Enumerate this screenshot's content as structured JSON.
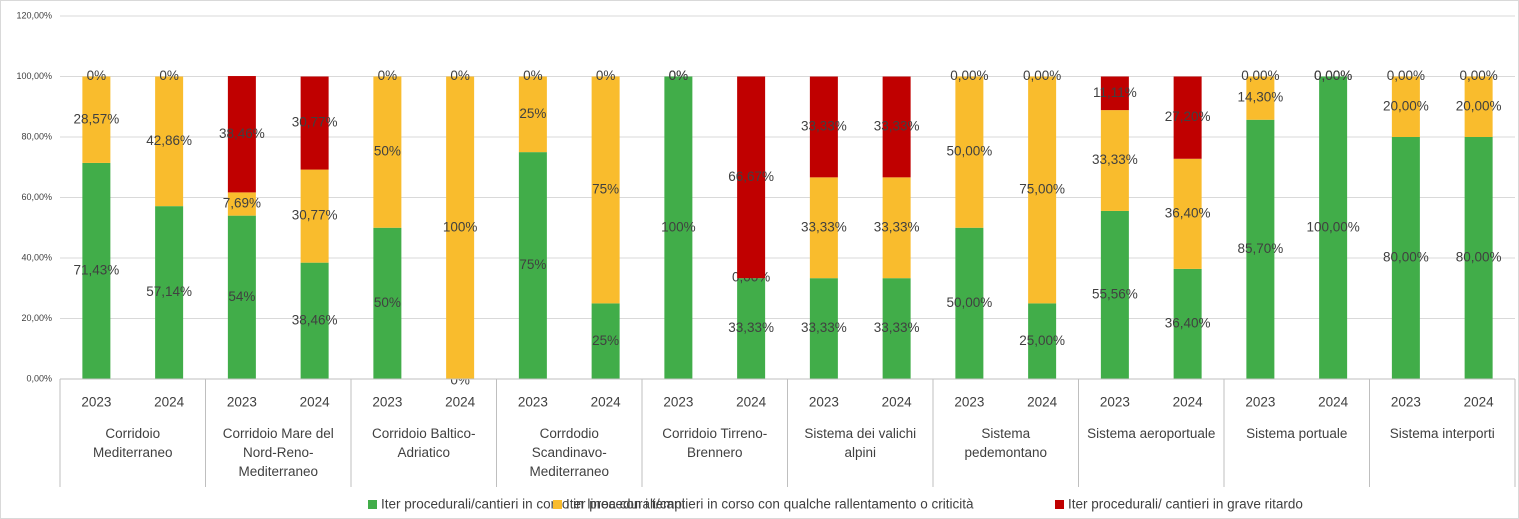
{
  "chart_data": {
    "type": "bar",
    "stacked": true,
    "categories": [
      "2023",
      "2024",
      "2023",
      "2024",
      "2023",
      "2024",
      "2023",
      "2024",
      "2023",
      "2024",
      "2023",
      "2024",
      "2023",
      "2024",
      "2023",
      "2024",
      "2023",
      "2024",
      "2023",
      "2024"
    ],
    "groups": [
      "Corridoio Mediterraneo",
      "Corridoio Mare del Nord-Reno-Mediterraneo",
      "Corridoio Baltico-Adriatico",
      "Corrdodio Scandinavo-Mediterraneo",
      "Corridoio Tirreno-Brennero",
      "Sistema dei valichi alpini",
      "Sistema pedemontano",
      "Sistema aeroportuale",
      "Sistema portuale",
      "Sistema interporti"
    ],
    "series": [
      {
        "name": "Iter procedurali/cantieri in corso in linea con i tempi",
        "color": "#41ad49",
        "values": [
          71.43,
          57.14,
          54,
          38.46,
          50,
          0,
          75,
          25,
          100,
          33.33,
          33.33,
          33.33,
          50,
          25,
          55.56,
          36.4,
          85.7,
          100,
          80,
          80
        ],
        "value_labels": [
          "71,43%",
          "57,14%",
          "54%",
          "38,46%",
          "50%",
          "0%",
          "75%",
          "25%",
          "100%",
          "33,33%",
          "33,33%",
          "33,33%",
          "50,00%",
          "25,00%",
          "55,56%",
          "36,40%",
          "85,70%",
          "100,00%",
          "80,00%",
          "80,00%"
        ]
      },
      {
        "name": "Iter procedurali/cantieri in corso con qualche rallentamento o criticità",
        "color": "#f9bc2d",
        "values": [
          28.57,
          42.86,
          7.69,
          30.77,
          50,
          100,
          25,
          75,
          0,
          0,
          33.33,
          33.33,
          50,
          75,
          33.33,
          36.4,
          14.3,
          0,
          20,
          20
        ],
        "value_labels": [
          "28,57%",
          "42,86%",
          "7,69%",
          "30,77%",
          "50%",
          "100%",
          "25%",
          "75%",
          "0%",
          "0,00%",
          "33,33%",
          "33,33%",
          "50,00%",
          "75,00%",
          "33,33%",
          "36,40%",
          "14,30%",
          "0,00%",
          "20,00%",
          "20,00%"
        ]
      },
      {
        "name": "Iter procedurali/ cantieri in grave ritardo",
        "color": "#c00000",
        "values": [
          0,
          0,
          38.46,
          30.77,
          0,
          0,
          0,
          0,
          0,
          66.67,
          33.33,
          33.33,
          0,
          0,
          11.11,
          27.2,
          0,
          0,
          0,
          0
        ],
        "value_labels": [
          "0%",
          "0%",
          "38,46%",
          "30,77%",
          "0%",
          "0%",
          "0%",
          "0%",
          "0%",
          "66,67%",
          "33,33%",
          "33,33%",
          "0,00%",
          "0,00%",
          "11,11%",
          "27,20%",
          "0,00%",
          "0,00%",
          "0,00%",
          "0,00%"
        ]
      }
    ],
    "ylim": [
      0,
      120
    ],
    "yticks": [
      {
        "value": 0,
        "label": "0,00%"
      },
      {
        "value": 20,
        "label": "20,00%"
      },
      {
        "value": 40,
        "label": "40,00%"
      },
      {
        "value": 60,
        "label": "60,00%"
      },
      {
        "value": 80,
        "label": "80,00%"
      },
      {
        "value": 100,
        "label": "100,00%"
      },
      {
        "value": 120,
        "label": "120,00%"
      }
    ],
    "grid": true,
    "legend": "bottom"
  }
}
